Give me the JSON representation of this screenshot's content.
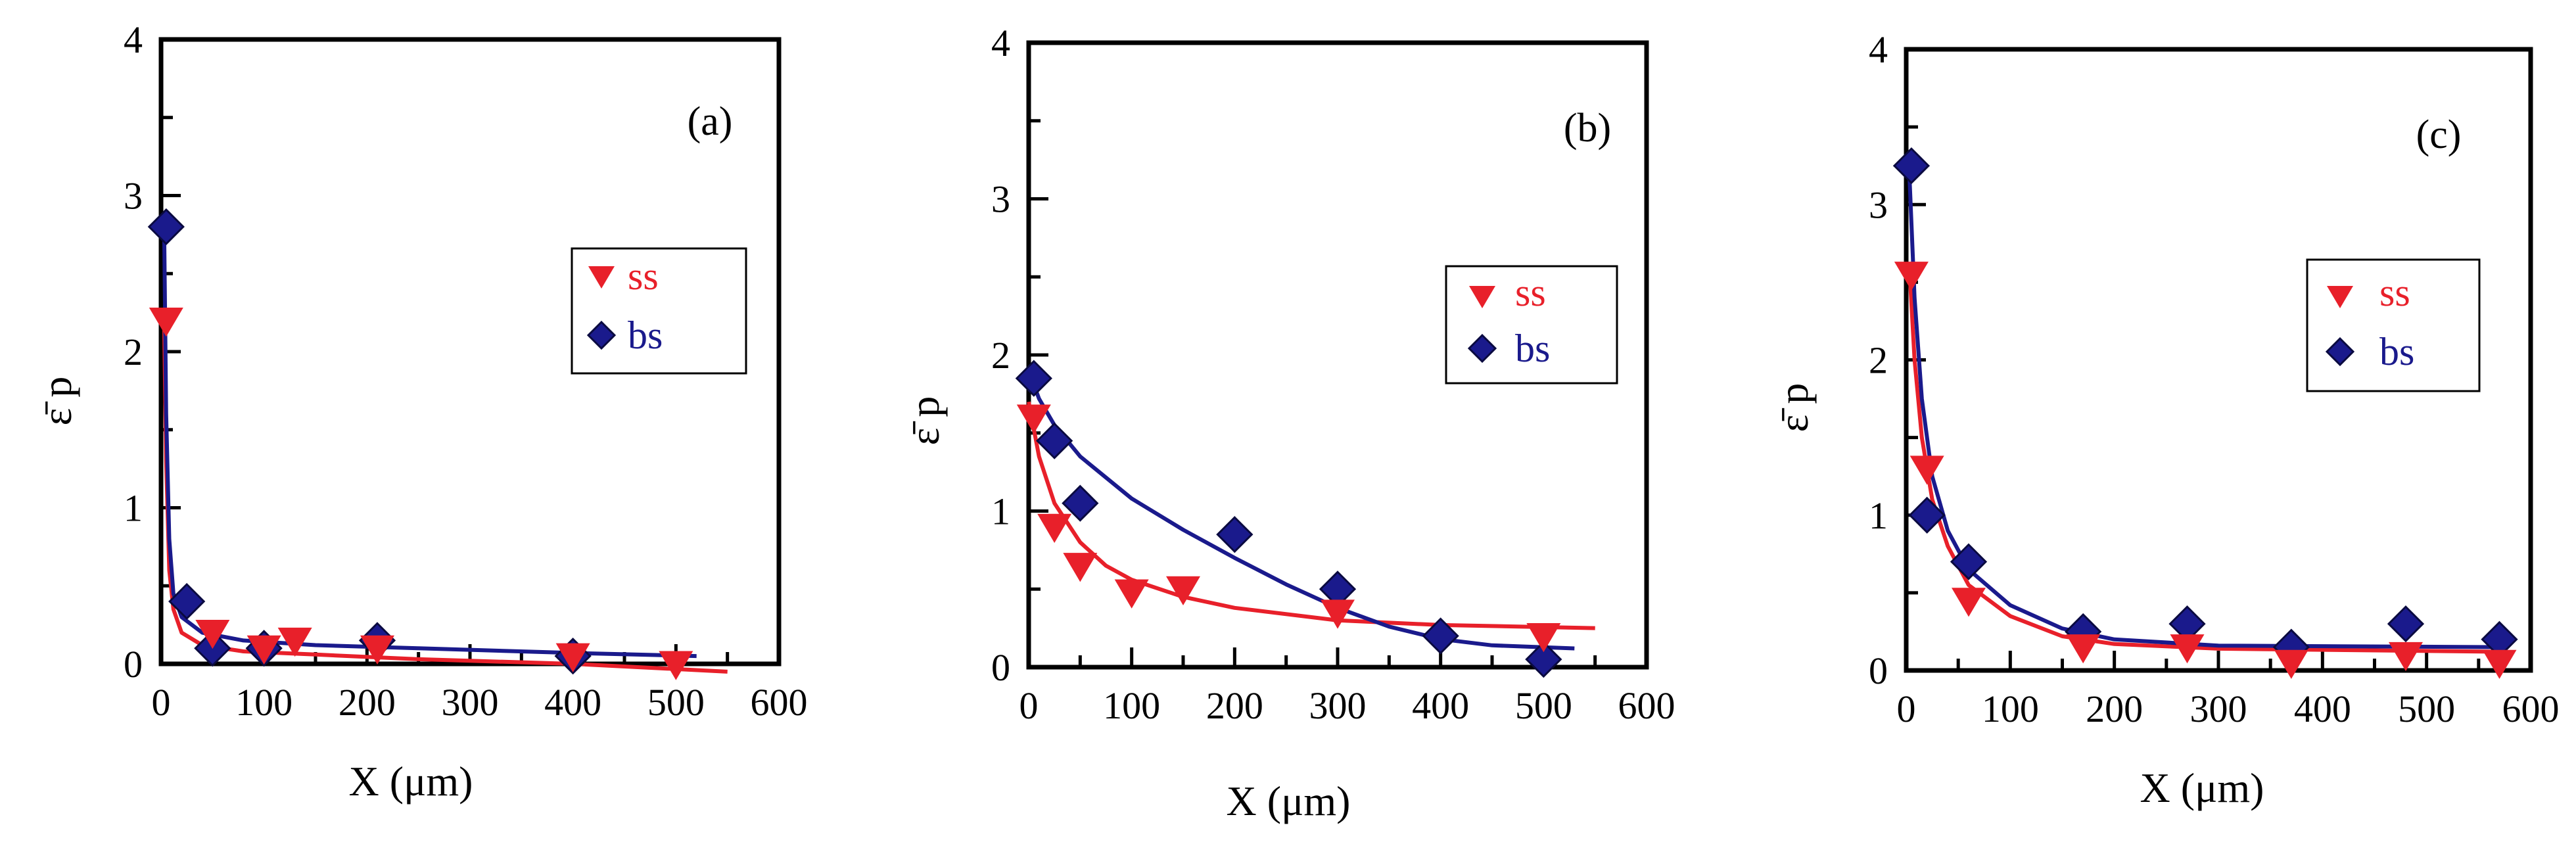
{
  "colors": {
    "ss": "#e8202a",
    "bs": "#1a1a8c",
    "axis": "#000000"
  },
  "chart_data": [
    {
      "type": "scatter",
      "panel_label": "(a)",
      "xlabel": "X (μm)",
      "ylabel": "ε̄ p",
      "xlim": [
        0,
        600
      ],
      "ylim": [
        0,
        4
      ],
      "x_ticks": [
        "0",
        "100",
        "200",
        "300",
        "400",
        "500",
        "600"
      ],
      "y_ticks": [
        "0",
        "1",
        "2",
        "3",
        "4"
      ],
      "legend": [
        "ss",
        "bs"
      ],
      "series": [
        {
          "name": "ss",
          "marker": "triangle-down",
          "x": [
            5,
            50,
            100,
            130,
            210,
            400,
            500
          ],
          "y": [
            2.2,
            0.2,
            0.1,
            0.15,
            0.1,
            0.05,
            0.0
          ],
          "fit": [
            [
              3,
              2.2
            ],
            [
              5,
              1.3
            ],
            [
              8,
              0.6
            ],
            [
              12,
              0.35
            ],
            [
              20,
              0.2
            ],
            [
              40,
              0.12
            ],
            [
              80,
              0.08
            ],
            [
              150,
              0.06
            ],
            [
              250,
              0.03
            ],
            [
              400,
              0.0
            ],
            [
              550,
              -0.05
            ]
          ]
        },
        {
          "name": "bs",
          "marker": "diamond",
          "x": [
            5,
            25,
            50,
            100,
            210,
            400
          ],
          "y": [
            2.8,
            0.4,
            0.1,
            0.1,
            0.15,
            0.05
          ],
          "fit": [
            [
              3,
              2.8
            ],
            [
              5,
              1.6
            ],
            [
              8,
              0.8
            ],
            [
              12,
              0.45
            ],
            [
              20,
              0.3
            ],
            [
              40,
              0.2
            ],
            [
              80,
              0.15
            ],
            [
              150,
              0.12
            ],
            [
              250,
              0.1
            ],
            [
              400,
              0.07
            ],
            [
              520,
              0.05
            ]
          ]
        }
      ]
    },
    {
      "type": "scatter",
      "panel_label": "(b)",
      "xlabel": "X (μm)",
      "ylabel": "ε̄ p",
      "xlim": [
        0,
        600
      ],
      "ylim": [
        0,
        4
      ],
      "x_ticks": [
        "0",
        "100",
        "200",
        "300",
        "400",
        "500",
        "600"
      ],
      "y_ticks": [
        "0",
        "1",
        "2",
        "3",
        "4"
      ],
      "legend": [
        "ss",
        "bs"
      ],
      "series": [
        {
          "name": "ss",
          "marker": "triangle-down",
          "x": [
            5,
            25,
            50,
            100,
            150,
            300,
            500
          ],
          "y": [
            1.6,
            0.9,
            0.65,
            0.48,
            0.5,
            0.35,
            0.2
          ],
          "fit": [
            [
              0,
              1.7
            ],
            [
              10,
              1.35
            ],
            [
              25,
              1.05
            ],
            [
              50,
              0.8
            ],
            [
              75,
              0.65
            ],
            [
              100,
              0.56
            ],
            [
              150,
              0.45
            ],
            [
              200,
              0.38
            ],
            [
              300,
              0.3
            ],
            [
              400,
              0.27
            ],
            [
              550,
              0.25
            ]
          ]
        },
        {
          "name": "bs",
          "marker": "diamond",
          "x": [
            5,
            25,
            50,
            200,
            300,
            400,
            500
          ],
          "y": [
            1.85,
            1.45,
            1.05,
            0.85,
            0.5,
            0.2,
            0.05
          ],
          "fit": [
            [
              0,
              1.9
            ],
            [
              10,
              1.72
            ],
            [
              25,
              1.55
            ],
            [
              50,
              1.35
            ],
            [
              100,
              1.08
            ],
            [
              150,
              0.88
            ],
            [
              200,
              0.7
            ],
            [
              250,
              0.53
            ],
            [
              300,
              0.38
            ],
            [
              350,
              0.26
            ],
            [
              400,
              0.18
            ],
            [
              450,
              0.14
            ],
            [
              530,
              0.12
            ]
          ]
        }
      ]
    },
    {
      "type": "scatter",
      "panel_label": "(c)",
      "xlabel": "X (μm)",
      "ylabel": "ε̄ p",
      "xlim": [
        0,
        600
      ],
      "ylim": [
        0,
        4
      ],
      "x_ticks": [
        "0",
        "100",
        "200",
        "300",
        "400",
        "500",
        "600"
      ],
      "y_ticks": [
        "0",
        "1",
        "2",
        "3",
        "4"
      ],
      "legend": [
        "ss",
        "bs"
      ],
      "series": [
        {
          "name": "ss",
          "marker": "triangle-down",
          "x": [
            5,
            20,
            60,
            170,
            270,
            370,
            480,
            570
          ],
          "y": [
            2.55,
            1.3,
            0.45,
            0.15,
            0.15,
            0.05,
            0.1,
            0.05
          ],
          "fit": [
            [
              3,
              2.6
            ],
            [
              8,
              2.0
            ],
            [
              15,
              1.5
            ],
            [
              25,
              1.1
            ],
            [
              40,
              0.8
            ],
            [
              60,
              0.55
            ],
            [
              100,
              0.35
            ],
            [
              150,
              0.22
            ],
            [
              200,
              0.17
            ],
            [
              300,
              0.14
            ],
            [
              575,
              0.12
            ]
          ]
        },
        {
          "name": "bs",
          "marker": "diamond",
          "x": [
            5,
            20,
            60,
            170,
            270,
            370,
            480,
            570
          ],
          "y": [
            3.25,
            1.0,
            0.7,
            0.25,
            0.3,
            0.15,
            0.3,
            0.2
          ],
          "fit": [
            [
              3,
              3.2
            ],
            [
              8,
              2.4
            ],
            [
              15,
              1.75
            ],
            [
              25,
              1.25
            ],
            [
              40,
              0.9
            ],
            [
              60,
              0.65
            ],
            [
              100,
              0.42
            ],
            [
              150,
              0.27
            ],
            [
              200,
              0.2
            ],
            [
              300,
              0.16
            ],
            [
              575,
              0.15
            ]
          ]
        }
      ]
    }
  ]
}
